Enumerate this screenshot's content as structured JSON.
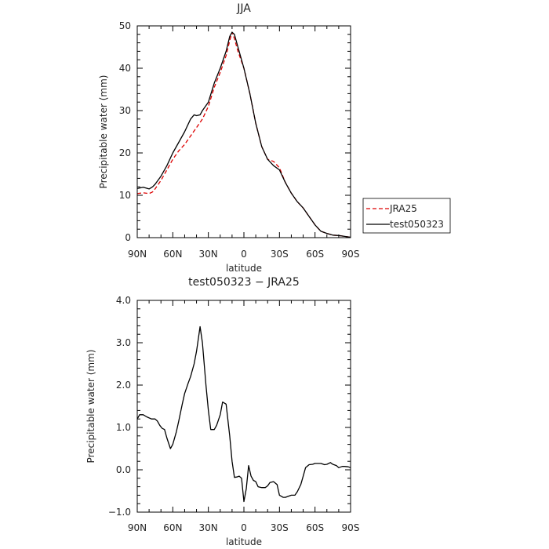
{
  "colors": {
    "jra25": "#dd0000",
    "test": "#000000",
    "frame": "#000000"
  },
  "chart_data": [
    {
      "type": "line",
      "title": "JJA",
      "xlabel": "latitude",
      "ylabel": "Precipitable water (mm)",
      "xlim": [
        -90,
        90
      ],
      "ylim": [
        0,
        50
      ],
      "xticks": [
        {
          "v": -90,
          "label": "90N"
        },
        {
          "v": -60,
          "label": "60N"
        },
        {
          "v": -30,
          "label": "30N"
        },
        {
          "v": 0,
          "label": "0"
        },
        {
          "v": 30,
          "label": "30S"
        },
        {
          "v": 60,
          "label": "60S"
        },
        {
          "v": 90,
          "label": "90S"
        }
      ],
      "yticks": [
        {
          "v": 0,
          "label": "0"
        },
        {
          "v": 10,
          "label": "10"
        },
        {
          "v": 20,
          "label": "20"
        },
        {
          "v": 30,
          "label": "30"
        },
        {
          "v": 40,
          "label": "40"
        },
        {
          "v": 50,
          "label": "50"
        }
      ],
      "legend": "right",
      "series": [
        {
          "name": "JRA25",
          "style": "dashed",
          "color": "#dd0000",
          "x": [
            -90,
            -85,
            -80,
            -77,
            -75,
            -70,
            -65,
            -60,
            -55,
            -50,
            -45,
            -40,
            -35,
            -30,
            -25,
            -20,
            -15,
            -12,
            -10,
            -8,
            -5,
            0,
            5,
            10,
            15,
            20,
            25,
            30,
            35,
            40,
            45,
            50,
            55,
            60,
            65,
            70,
            75,
            80,
            85,
            90
          ],
          "y": [
            10.4,
            10.6,
            10.4,
            10.8,
            11.5,
            13.5,
            16,
            18.5,
            20.5,
            22,
            24,
            26,
            28,
            31,
            35.5,
            39,
            43,
            46.5,
            48.5,
            47,
            44,
            40,
            34,
            27,
            21.5,
            18.5,
            18,
            16.5,
            13,
            10.5,
            8.5,
            7,
            5,
            3,
            1.5,
            1,
            0.6,
            0.5,
            0.3,
            0.1
          ]
        },
        {
          "name": "test050323",
          "style": "solid",
          "color": "#000000",
          "x": [
            -90,
            -85,
            -80,
            -77,
            -75,
            -70,
            -65,
            -60,
            -55,
            -50,
            -45,
            -42,
            -40,
            -37,
            -35,
            -30,
            -25,
            -20,
            -15,
            -12,
            -10,
            -8,
            -5,
            0,
            5,
            10,
            15,
            20,
            25,
            30,
            35,
            40,
            45,
            50,
            55,
            60,
            65,
            70,
            75,
            80,
            85,
            90
          ],
          "y": [
            11.6,
            11.9,
            11.5,
            12,
            12.6,
            14.5,
            17,
            20,
            22.5,
            25,
            28,
            29,
            28.8,
            29,
            30,
            32,
            36.5,
            40,
            44,
            47.5,
            48.5,
            48,
            45,
            40,
            34,
            27,
            21.5,
            18.5,
            17,
            16,
            13,
            10.5,
            8.5,
            7,
            5,
            3,
            1.5,
            1,
            0.6,
            0.5,
            0.3,
            0.1
          ]
        }
      ]
    },
    {
      "type": "line",
      "title": "test050323 − JRA25",
      "xlabel": "latitude",
      "ylabel": "Precipitable water (mm)",
      "xlim": [
        -90,
        90
      ],
      "ylim": [
        -1.0,
        4.0
      ],
      "xticks": [
        {
          "v": -90,
          "label": "90N"
        },
        {
          "v": -60,
          "label": "60N"
        },
        {
          "v": -30,
          "label": "30N"
        },
        {
          "v": 0,
          "label": "0"
        },
        {
          "v": 30,
          "label": "30S"
        },
        {
          "v": 60,
          "label": "60S"
        },
        {
          "v": 90,
          "label": "90S"
        }
      ],
      "yticks": [
        {
          "v": -1.0,
          "label": "−1.0"
        },
        {
          "v": 0.0,
          "label": "0.0"
        },
        {
          "v": 1.0,
          "label": "1.0"
        },
        {
          "v": 2.0,
          "label": "2.0"
        },
        {
          "v": 3.0,
          "label": "3.0"
        },
        {
          "v": 4.0,
          "label": "4.0"
        }
      ],
      "series": [
        {
          "name": "",
          "style": "solid",
          "color": "#000000",
          "x": [
            -90,
            -88,
            -85,
            -82,
            -78,
            -75,
            -73,
            -71,
            -69,
            -67,
            -65,
            -62,
            -60,
            -57,
            -55,
            -52,
            -50,
            -47,
            -45,
            -42,
            -40,
            -37,
            -35,
            -32,
            -30,
            -28,
            -25,
            -23,
            -20,
            -18,
            -15,
            -12,
            -10,
            -8,
            -6,
            -4,
            -2,
            0,
            2,
            4,
            6,
            8,
            10,
            12,
            15,
            18,
            20,
            22,
            25,
            28,
            30,
            33,
            35,
            38,
            40,
            43,
            45,
            48,
            50,
            52,
            55,
            58,
            60,
            62,
            65,
            68,
            70,
            73,
            75,
            78,
            80,
            83,
            85,
            88,
            90
          ],
          "y": [
            1.2,
            1.3,
            1.3,
            1.25,
            1.2,
            1.2,
            1.15,
            1.05,
            0.98,
            0.95,
            0.75,
            0.5,
            0.6,
            0.9,
            1.15,
            1.55,
            1.8,
            2.05,
            2.2,
            2.5,
            2.8,
            3.38,
            3.0,
            2.0,
            1.4,
            0.95,
            0.95,
            1.05,
            1.3,
            1.6,
            1.55,
            0.8,
            0.2,
            -0.18,
            -0.17,
            -0.15,
            -0.2,
            -0.75,
            -0.45,
            0.1,
            -0.15,
            -0.25,
            -0.28,
            -0.4,
            -0.42,
            -0.42,
            -0.38,
            -0.3,
            -0.28,
            -0.35,
            -0.6,
            -0.65,
            -0.65,
            -0.62,
            -0.6,
            -0.6,
            -0.52,
            -0.35,
            -0.15,
            0.05,
            0.12,
            0.13,
            0.15,
            0.15,
            0.15,
            0.12,
            0.13,
            0.17,
            0.13,
            0.1,
            0.05,
            0.08,
            0.08,
            0.07,
            0.05
          ]
        }
      ]
    }
  ]
}
